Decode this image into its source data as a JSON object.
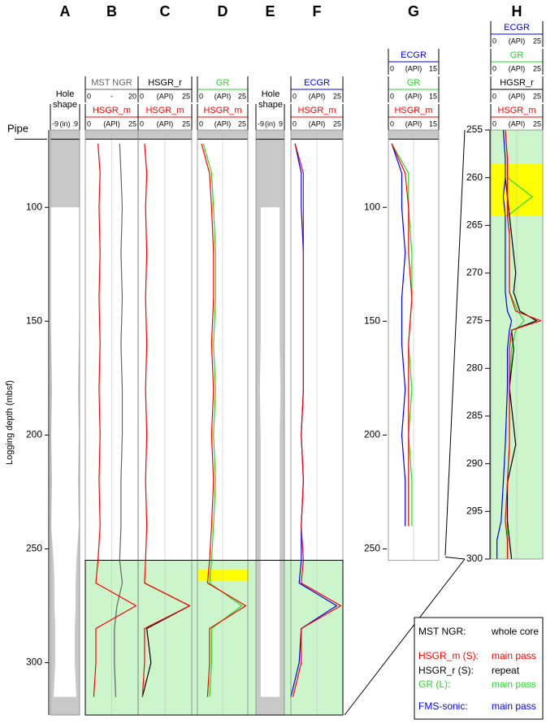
{
  "chart_data": {
    "type": "welllog",
    "ylabel": "Logging depth (mbsf)",
    "pipe_label": "Pipe",
    "pipe_depth": 70,
    "ylim": [
      66,
      323
    ],
    "yticks": [
      100,
      150,
      200,
      250,
      300
    ],
    "depth": [
      72,
      85,
      100,
      120,
      140,
      160,
      180,
      200,
      220,
      240,
      255,
      265,
      275,
      285,
      300,
      315
    ],
    "tracks": [
      {
        "letter": "A",
        "curves": [
          {
            "name": "Hole shape",
            "style": "fill",
            "color": "#c8c8c8",
            "xlim": [
              -9,
              9
            ],
            "unit": "(in)",
            "values": [
              null,
              null,
              9,
              9,
              9,
              8.5,
              8,
              8.5,
              8,
              8.5,
              7,
              6.5,
              6.5,
              6,
              6,
              7
            ]
          }
        ]
      },
      {
        "letter": "B",
        "curves": [
          {
            "name": "MST NGR",
            "color": "#666666",
            "xlim": [
              0,
              20
            ],
            "unit": "-",
            "values": [
              13,
              13.5,
              14,
              13.5,
              14,
              13.5,
              14,
              14,
              13.5,
              13.5,
              13,
              14,
              12,
              11,
              11,
              11.5
            ]
          },
          {
            "name": "HSGR_m",
            "color": "#ff0000",
            "xlim": [
              0,
              25
            ],
            "unit": "(API)",
            "values": [
              6,
              7,
              6.5,
              7,
              6.5,
              7,
              6.5,
              7,
              6.5,
              7,
              6,
              5,
              24,
              5,
              5,
              4
            ]
          }
        ]
      },
      {
        "letter": "C",
        "curves": [
          {
            "name": "HSGR_r",
            "color": "#000000",
            "xlim": [
              0,
              25
            ],
            "unit": "(API)",
            "values": [
              null,
              null,
              null,
              null,
              null,
              null,
              null,
              null,
              null,
              null,
              null,
              3,
              24,
              4,
              6,
              2
            ]
          },
          {
            "name": "HSGR_m",
            "color": "#ff0000",
            "xlim": [
              0,
              25
            ],
            "unit": "(API)",
            "values": [
              3,
              4,
              3.5,
              4,
              3.5,
              4,
              3.5,
              4,
              3.5,
              4,
              3.5,
              3,
              24,
              3,
              3,
              2
            ]
          }
        ]
      },
      {
        "letter": "D",
        "highlight": [
          259,
          264
        ],
        "curves": [
          {
            "name": "GR",
            "color": "#22dd22",
            "xlim": [
              0,
              25
            ],
            "unit": "(API)",
            "values": [
              3,
              7,
              8,
              9,
              9,
              8,
              9,
              8,
              9,
              8,
              7,
              6,
              22,
              7,
              7,
              6
            ]
          },
          {
            "name": "HSGR_m",
            "color": "#ff0000",
            "xlim": [
              0,
              25
            ],
            "unit": "(API)",
            "values": [
              2,
              6,
              7,
              8,
              8,
              7,
              8,
              7,
              8,
              7,
              6,
              5,
              24,
              6,
              6,
              5
            ]
          }
        ]
      },
      {
        "letter": "E",
        "curves": [
          {
            "name": "Hole shape",
            "style": "fill",
            "color": "#c8c8c8",
            "xlim": [
              -9,
              9
            ],
            "unit": "(in)",
            "values": [
              null,
              null,
              6,
              6,
              6,
              6,
              6.5,
              6,
              6,
              6,
              6,
              6,
              6,
              6,
              6,
              6
            ]
          }
        ]
      },
      {
        "letter": "F",
        "curves": [
          {
            "name": "ECGR",
            "color": "#0000ff",
            "xlim": [
              0,
              25
            ],
            "unit": "(API)",
            "values": [
              2,
              5,
              5,
              6,
              6,
              6,
              6,
              5,
              6,
              5,
              5,
              4,
              22,
              5,
              4,
              0
            ]
          },
          {
            "name": "HSGR_m",
            "color": "#ff0000",
            "xlim": [
              0,
              25
            ],
            "unit": "(API)",
            "values": [
              2,
              6,
              6,
              6,
              6,
              6,
              6,
              5,
              6,
              5,
              6,
              5,
              24,
              5,
              5,
              1
            ]
          }
        ]
      },
      {
        "letter": "G",
        "curves": [
          {
            "name": "ECGR",
            "color": "#0000ff",
            "xlim": [
              0,
              15
            ],
            "unit": "(API)",
            "values": [
              1,
              4,
              4,
              5,
              4,
              4,
              5,
              4,
              5,
              5,
              null,
              null,
              null,
              null,
              null,
              null
            ]
          },
          {
            "name": "GR",
            "color": "#22dd22",
            "xlim": [
              0,
              15
            ],
            "unit": "(API)",
            "values": [
              1,
              6,
              6,
              7,
              7,
              6,
              7,
              6,
              7,
              7,
              null,
              null,
              null,
              null,
              null,
              null
            ]
          },
          {
            "name": "HSGR_m",
            "color": "#ff0000",
            "xlim": [
              0,
              15
            ],
            "unit": "(API)",
            "values": [
              1,
              5,
              6,
              6,
              7,
              6,
              6,
              6,
              6,
              6,
              null,
              null,
              null,
              null,
              null,
              null
            ]
          }
        ]
      },
      {
        "letter": "H",
        "highlight": [
          258.5,
          264
        ],
        "ylim": [
          255,
          300
        ],
        "yticks": [
          255,
          260,
          265,
          270,
          275,
          280,
          285,
          290,
          295,
          300
        ],
        "depth": [
          255,
          258,
          260,
          262,
          264,
          266,
          270,
          272,
          274,
          275,
          276,
          278,
          282,
          288,
          292,
          296,
          298,
          300
        ],
        "curves": [
          {
            "name": "ECGR",
            "color": "#0000ff",
            "xlim": [
              0,
              25
            ],
            "unit": "(API)",
            "values": [
              6,
              7,
              7,
              6,
              7,
              7,
              7,
              7,
              8,
              10,
              9,
              8,
              8,
              7,
              6,
              5,
              3,
              3
            ]
          },
          {
            "name": "GR",
            "color": "#22dd22",
            "xlim": [
              0,
              25
            ],
            "unit": "(API)",
            "values": [
              7,
              8,
              8,
              20,
              8,
              9,
              9,
              9,
              13,
              16,
              12,
              10,
              9,
              9,
              8,
              8,
              8,
              8
            ]
          },
          {
            "name": "HGSR_r",
            "color": "#000000",
            "xlim": [
              0,
              25
            ],
            "unit": "(API)",
            "values": [
              null,
              null,
              7,
              8,
              9,
              10,
              12,
              11,
              14,
              22,
              10,
              11,
              9,
              12,
              8,
              8,
              9,
              10
            ]
          },
          {
            "name": "HSGR_m",
            "color": "#ff0000",
            "xlim": [
              0,
              25
            ],
            "unit": "(API)",
            "values": [
              7,
              8,
              8,
              8,
              8,
              9,
              9,
              9,
              12,
              24,
              10,
              9,
              9,
              9,
              8,
              7,
              8,
              8
            ]
          }
        ]
      }
    ],
    "legend": [
      {
        "label": "MST NGR:",
        "text": "whole core",
        "color": "#000000"
      },
      {
        "label": "HSGR_m (S):",
        "text": "main pass",
        "color": "#ff0000"
      },
      {
        "label": "HSGR_r  (S):",
        "text": "repeat",
        "color": "#000000"
      },
      {
        "label": "GR (L):",
        "text": "main pass",
        "color": "#22dd22"
      },
      {
        "label": "FMS-sonic:",
        "text": "main pass",
        "color": "#0000ff"
      }
    ]
  }
}
